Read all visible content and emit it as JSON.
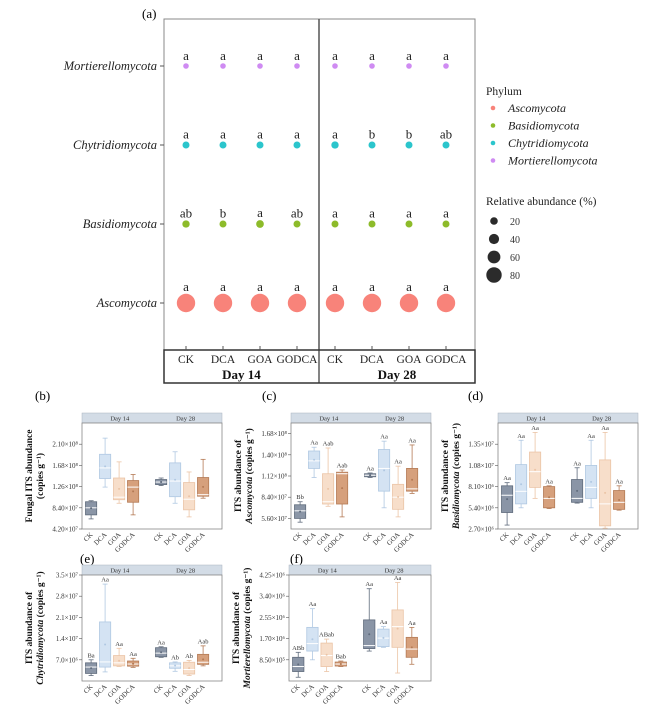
{
  "figure": {
    "panel_a_label": "(a)",
    "panel_labels": [
      "(b)",
      "(c)",
      "(d)",
      "(e)",
      "(f)"
    ]
  },
  "chart_data": [
    {
      "id": "a",
      "type": "scatter",
      "title": "(a)",
      "subtype": "bubble-grid",
      "phyla": [
        "Mortierellomycota",
        "Chytridiomycota",
        "Basidiomycota",
        "Ascomycota"
      ],
      "treatments": [
        "CK",
        "DCA",
        "GOA",
        "GODCA"
      ],
      "days": [
        "Day 14",
        "Day 28"
      ],
      "colors": {
        "Ascomycota": "#F8837A",
        "Basidiomycota": "#8DBB2A",
        "Chytridiomycota": "#2BC5CC",
        "Mortierellomycota": "#CF8BF2"
      },
      "letters": {
        "Mortierellomycota": [
          [
            "a",
            "a",
            "a",
            "a"
          ],
          [
            "a",
            "a",
            "a",
            "a"
          ]
        ],
        "Chytridiomycota": [
          [
            "a",
            "a",
            "a",
            "a"
          ],
          [
            "a",
            "b",
            "b",
            "ab"
          ]
        ],
        "Basidiomycota": [
          [
            "ab",
            "b",
            "a",
            "ab"
          ],
          [
            "a",
            "a",
            "a",
            "a"
          ]
        ],
        "Ascomycota": [
          [
            "a",
            "a",
            "a",
            "a"
          ],
          [
            "a",
            "a",
            "a",
            "a"
          ]
        ]
      },
      "relative_abundance_pct": {
        "Mortierellomycota": [
          [
            2,
            2,
            2,
            2
          ],
          [
            2,
            2,
            2,
            2
          ]
        ],
        "Chytridiomycota": [
          [
            5,
            5,
            5,
            5
          ],
          [
            6,
            5,
            5,
            5
          ]
        ],
        "Basidiomycota": [
          [
            6,
            5,
            7,
            5
          ],
          [
            5,
            5,
            5,
            5
          ]
        ],
        "Ascomycota": [
          [
            80,
            80,
            80,
            80
          ],
          [
            80,
            80,
            80,
            80
          ]
        ]
      },
      "legend": {
        "phylum_title": "Phylum",
        "phylum_items": [
          "Ascomycota",
          "Basidiomycota",
          "Chytridiomycota",
          "Mortierellomycota"
        ],
        "size_title": "Relative abundance (%)",
        "size_items": [
          20,
          40,
          60,
          80
        ],
        "placement": "right"
      }
    },
    {
      "id": "b",
      "type": "box",
      "title": "(b)",
      "ylabel_lines": [
        "Fungal ITS abundance",
        "(copies g⁻¹)"
      ],
      "ylabel_italic_part": "",
      "ylim": [
        42000000,
        252000000
      ],
      "yticks": [
        42000000,
        84000000,
        126000000,
        168000000,
        210000000
      ],
      "ytick_labels": [
        "4.20×10⁷",
        "8.40×10⁷",
        "1.26×10⁸",
        "1.68×10⁸",
        "2.10×10⁸"
      ],
      "facets": [
        "Day 14",
        "Day 28"
      ],
      "categories": [
        "CK",
        "DCA",
        "GOA",
        "GODCA"
      ],
      "boxes": [
        [
          {
            "min": 62000000,
            "q1": 70000000,
            "median": 84000000,
            "q3": 96000000,
            "max": 98000000,
            "letter": ""
          },
          {
            "min": 125000000,
            "q1": 142000000,
            "median": 163000000,
            "q3": 190000000,
            "max": 222000000,
            "letter": ""
          },
          {
            "min": 93000000,
            "q1": 100000000,
            "median": 105000000,
            "q3": 143000000,
            "max": 175000000,
            "letter": ""
          },
          {
            "min": 70000000,
            "q1": 95000000,
            "median": 125000000,
            "q3": 138000000,
            "max": 150000000,
            "letter": ""
          }
        ],
        [
          {
            "min": 128000000,
            "q1": 130000000,
            "median": 135000000,
            "q3": 140000000,
            "max": 143000000,
            "letter": ""
          },
          {
            "min": 93000000,
            "q1": 106000000,
            "median": 137000000,
            "q3": 173000000,
            "max": 195000000,
            "letter": ""
          },
          {
            "min": 66000000,
            "q1": 80000000,
            "median": 101000000,
            "q3": 134000000,
            "max": 155000000,
            "letter": ""
          },
          {
            "min": 103000000,
            "q1": 107000000,
            "median": 110000000,
            "q3": 144000000,
            "max": 180000000,
            "letter": ""
          }
        ]
      ]
    },
    {
      "id": "c",
      "type": "box",
      "title": "(c)",
      "ylabel_lines": [
        "ITS abundance of",
        "Ascomycota (copies g⁻¹)"
      ],
      "ylabel_italic_part": "Ascomycota",
      "ylim": [
        42000000,
        182000000
      ],
      "yticks": [
        56000000,
        84000000,
        112000000,
        140000000,
        168000000
      ],
      "ytick_labels": [
        "5.60×10⁷",
        "8.40×10⁷",
        "1.12×10⁸",
        "1.40×10⁸",
        "1.68×10⁸"
      ],
      "facets": [
        "Day 14",
        "Day 28"
      ],
      "categories": [
        "CK",
        "DCA",
        "GOA",
        "GODCA"
      ],
      "boxes": [
        [
          {
            "min": 51000000,
            "q1": 56000000,
            "median": 66000000,
            "q3": 74000000,
            "max": 78000000,
            "letter": "Bb"
          },
          {
            "min": 110000000,
            "q1": 122000000,
            "median": 132000000,
            "q3": 145000000,
            "max": 150000000,
            "letter": "Aa"
          },
          {
            "min": 72000000,
            "q1": 75000000,
            "median": 78000000,
            "q3": 115000000,
            "max": 149000000,
            "letter": "Aab"
          },
          {
            "min": 58000000,
            "q1": 75000000,
            "median": 115000000,
            "q3": 117000000,
            "max": 120000000,
            "letter": "Aab"
          }
        ],
        [
          {
            "min": 110000000,
            "q1": 111000000,
            "median": 113000000,
            "q3": 115000000,
            "max": 116000000,
            "letter": "Aa"
          },
          {
            "min": 70000000,
            "q1": 92000000,
            "median": 122000000,
            "q3": 147000000,
            "max": 158000000,
            "letter": "Aa"
          },
          {
            "min": 58000000,
            "q1": 68000000,
            "median": 84000000,
            "q3": 101000000,
            "max": 125000000,
            "letter": "Aa"
          },
          {
            "min": 89000000,
            "q1": 92000000,
            "median": 95000000,
            "q3": 122000000,
            "max": 153000000,
            "letter": "Aa"
          }
        ]
      ]
    },
    {
      "id": "d",
      "type": "box",
      "title": "(d)",
      "ylabel_lines": [
        "ITS abundance of",
        "Basidiomycota (copies g⁻¹)"
      ],
      "ylabel_italic_part": "Basidiomycota",
      "ylim": [
        2700000,
        16200000
      ],
      "yticks": [
        2700000,
        5400000,
        8100000,
        10800000,
        13500000
      ],
      "ytick_labels": [
        "2.70×10⁶",
        "5.40×10⁶",
        "8.10×10⁶",
        "1.08×10⁷",
        "1.35×10⁷"
      ],
      "facets": [
        "Day 14",
        "Day 28"
      ],
      "categories": [
        "CK",
        "DCA",
        "GOA",
        "GODCA"
      ],
      "boxes": [
        [
          {
            "min": 3200000,
            "q1": 4800000,
            "median": 7000000,
            "q3": 8200000,
            "max": 8600000,
            "letter": "Aa"
          },
          {
            "min": 5400000,
            "q1": 5900000,
            "median": 7500000,
            "q3": 10900000,
            "max": 14000000,
            "letter": "Aa"
          },
          {
            "min": 6600000,
            "q1": 8000000,
            "median": 10000000,
            "q3": 12500000,
            "max": 15000000,
            "letter": "Aa"
          },
          {
            "min": 5300000,
            "q1": 5400000,
            "median": 6600000,
            "q3": 8100000,
            "max": 8200000,
            "letter": "Aa"
          }
        ],
        [
          {
            "min": 6000000,
            "q1": 6100000,
            "median": 6600000,
            "q3": 9000000,
            "max": 10500000,
            "letter": "Aa"
          },
          {
            "min": 5400000,
            "q1": 6600000,
            "median": 8000000,
            "q3": 10800000,
            "max": 14000000,
            "letter": "Aa"
          },
          {
            "min": 2800000,
            "q1": 3100000,
            "median": 5900000,
            "q3": 11500000,
            "max": 15000000,
            "letter": "Aa"
          },
          {
            "min": 5100000,
            "q1": 5200000,
            "median": 6100000,
            "q3": 7600000,
            "max": 8200000,
            "letter": "Aa"
          }
        ]
      ]
    },
    {
      "id": "e",
      "type": "box",
      "title": "(e)",
      "ylabel_lines": [
        "ITS abundance of",
        "Chytridiomycota (copies g⁻¹)"
      ],
      "ylabel_italic_part": "Chytridiomycota",
      "ylim": [
        0,
        35000000
      ],
      "yticks": [
        7000000,
        14000000,
        21000000,
        28000000,
        35000000
      ],
      "ytick_labels": [
        "7.0×10⁶",
        "1.4×10⁷",
        "2.1×10⁷",
        "2.8×10⁷",
        "3.5×10⁷"
      ],
      "facets": [
        "Day 14",
        "Day 28"
      ],
      "categories": [
        "CK",
        "DCA",
        "GOA",
        "GODCA"
      ],
      "boxes": [
        [
          {
            "min": 1800000,
            "q1": 2500000,
            "median": 4600000,
            "q3": 6000000,
            "max": 7000000,
            "letter": "Ba"
          },
          {
            "min": 3000000,
            "q1": 4600000,
            "median": 6300000,
            "q3": 19500000,
            "max": 32000000,
            "letter": "Aa"
          },
          {
            "min": 4800000,
            "q1": 5000000,
            "median": 6000000,
            "q3": 8400000,
            "max": 10800000,
            "letter": "Aa"
          },
          {
            "min": 4500000,
            "q1": 4900000,
            "median": 5600000,
            "q3": 6600000,
            "max": 7500000,
            "letter": "Aa"
          }
        ],
        [
          {
            "min": 7800000,
            "q1": 8000000,
            "median": 9200000,
            "q3": 11000000,
            "max": 11300000,
            "letter": "Aa"
          },
          {
            "min": 3200000,
            "q1": 4200000,
            "median": 5000000,
            "q3": 6000000,
            "max": 6300000,
            "letter": "Ab"
          },
          {
            "min": 1800000,
            "q1": 2300000,
            "median": 3800000,
            "q3": 6200000,
            "max": 6800000,
            "letter": "Ab"
          },
          {
            "min": 5000000,
            "q1": 5500000,
            "median": 6200000,
            "q3": 8800000,
            "max": 11600000,
            "letter": "Aab"
          }
        ]
      ]
    },
    {
      "id": "f",
      "type": "box",
      "title": "(f)",
      "ylabel_lines": [
        "ITS abundance of",
        "Mortierellomycota (copies g⁻¹)"
      ],
      "ylabel_italic_part": "Mortierellomycota",
      "ylim": [
        0,
        4250000
      ],
      "yticks": [
        850000,
        1700000,
        2550000,
        3400000,
        4250000
      ],
      "ytick_labels": [
        "8.50×10⁵",
        "1.70×10⁶",
        "2.55×10⁶",
        "3.40×10⁶",
        "4.25×10⁶"
      ],
      "facets": [
        "Day 14",
        "Day 28"
      ],
      "categories": [
        "CK",
        "DCA",
        "GOA",
        "GODCA"
      ],
      "boxes": [
        [
          {
            "min": 150000,
            "q1": 380000,
            "median": 580000,
            "q3": 950000,
            "max": 1150000,
            "letter": "ABb"
          },
          {
            "min": 850000,
            "q1": 1200000,
            "median": 1500000,
            "q3": 2150000,
            "max": 2900000,
            "letter": "Aa"
          },
          {
            "min": 380000,
            "q1": 580000,
            "median": 1020000,
            "q3": 1520000,
            "max": 1680000,
            "letter": "ABab"
          },
          {
            "min": 580000,
            "q1": 600000,
            "median": 680000,
            "q3": 760000,
            "max": 800000,
            "letter": "Bab"
          }
        ],
        [
          {
            "min": 1200000,
            "q1": 1300000,
            "median": 1420000,
            "q3": 2450000,
            "max": 3700000,
            "letter": "Aa"
          },
          {
            "min": 1350000,
            "q1": 1380000,
            "median": 1720000,
            "q3": 2080000,
            "max": 2180000,
            "letter": "Aa"
          },
          {
            "min": 320000,
            "q1": 1350000,
            "median": 2180000,
            "q3": 2850000,
            "max": 3950000,
            "letter": "Aa"
          },
          {
            "min": 670000,
            "q1": 950000,
            "median": 1280000,
            "q3": 1750000,
            "max": 2150000,
            "letter": "Aa"
          }
        ]
      ]
    }
  ],
  "box_colors": {
    "CK": {
      "fill": "#8A95A6",
      "stroke": "#5F6B7C"
    },
    "DCA": {
      "fill": "#D4E3F3",
      "stroke": "#B0C8E2"
    },
    "GOA": {
      "fill": "#F7DECA",
      "stroke": "#EBC4A6"
    },
    "GODCA": {
      "fill": "#D6A07C",
      "stroke": "#B47A55"
    }
  },
  "facet_strip_color": "#D3DCE6"
}
